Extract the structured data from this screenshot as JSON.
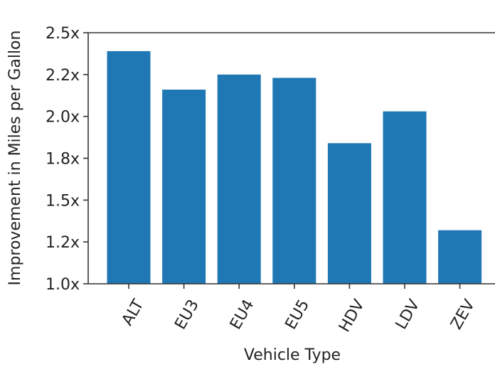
{
  "chart_data": {
    "type": "bar",
    "title": "",
    "xlabel": "Vehicle Type",
    "ylabel": "Improvement in Miles per Gallon",
    "categories": [
      "ALT",
      "EU3",
      "EU4",
      "EU5",
      "HDV",
      "LDV",
      "ZEV"
    ],
    "values": [
      2.39,
      2.16,
      2.25,
      2.23,
      1.84,
      2.03,
      1.32
    ],
    "ylim": [
      1.0,
      2.5
    ],
    "yticks": [
      1.0,
      1.25,
      1.5,
      1.75,
      2.0,
      2.25,
      2.5
    ],
    "ytick_labels": [
      "1.0x",
      "1.2x",
      "1.5x",
      "1.8x",
      "2.0x",
      "2.2x",
      "2.5x"
    ],
    "bar_color": "#1f77b4",
    "grid": false,
    "x_tick_rotation": "45 degrees"
  }
}
